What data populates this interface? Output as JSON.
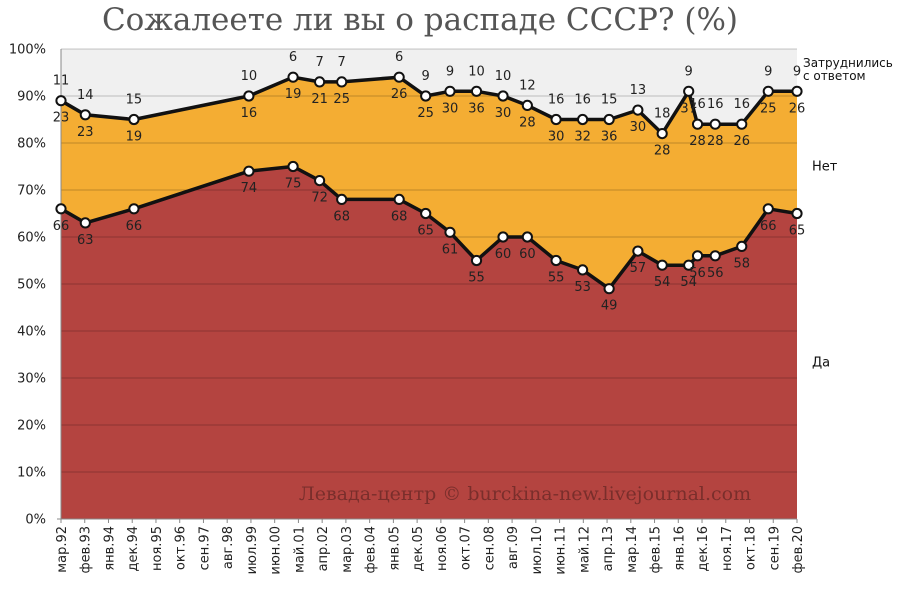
{
  "chart_data": {
    "type": "area",
    "title": "Сожалеете ли вы о распаде СССР? (%)",
    "watermark": "Левада-центр © burckina-new.livejournal.com",
    "y_axis": {
      "range": [
        0,
        100
      ],
      "ticks": [
        "0%",
        "10%",
        "20%",
        "30%",
        "40%",
        "50%",
        "60%",
        "70%",
        "80%",
        "90%",
        "100%"
      ]
    },
    "x_axis": {
      "tick_labels": [
        "мар.92",
        "фев.93",
        "янв.94",
        "дек.94",
        "ноя.95",
        "окт.96",
        "сен.97",
        "авг.98",
        "июл.99",
        "июн.00",
        "май.01",
        "апр.02",
        "мар.03",
        "фев.04",
        "янв.05",
        "дек.05",
        "ноя.06",
        "окт.07",
        "сен.08",
        "авг.09",
        "июл.10",
        "июн.11",
        "май.12",
        "апр.13",
        "мар.14",
        "фев.15",
        "янв.16",
        "дек.16",
        "ноя.17",
        "окт.18",
        "сен.19",
        "фев.20"
      ]
    },
    "grid": true,
    "legend_placement": "right",
    "colors": {
      "yes": "#b44440",
      "no": "#f4ad33",
      "hard_to_say": "#f0f0f0",
      "line": "#111111"
    },
    "series": [
      {
        "name": "Да",
        "key": "yes"
      },
      {
        "name": "Нет",
        "key": "no"
      },
      {
        "name": "Затруднились с ответом",
        "key": "hard_to_say"
      }
    ],
    "points": [
      {
        "date": "1992-03",
        "yes": 66,
        "no": 23,
        "hard_to_say": 11
      },
      {
        "date": "1993-02",
        "yes": 63,
        "no": 23,
        "hard_to_say": 14
      },
      {
        "date": "1994-12",
        "yes": 66,
        "no": 19,
        "hard_to_say": 15
      },
      {
        "date": "1999-04",
        "yes": 74,
        "no": 16,
        "hard_to_say": 10
      },
      {
        "date": "2000-12",
        "yes": 75,
        "no": 19,
        "hard_to_say": 6
      },
      {
        "date": "2001-12",
        "yes": 72,
        "no": 21,
        "hard_to_say": 7
      },
      {
        "date": "2002-10",
        "yes": 68,
        "no": 25,
        "hard_to_say": 7
      },
      {
        "date": "2004-12",
        "yes": 68,
        "no": 26,
        "hard_to_say": 6
      },
      {
        "date": "2005-12",
        "yes": 65,
        "no": 25,
        "hard_to_say": 9
      },
      {
        "date": "2006-11",
        "yes": 61,
        "no": 30,
        "hard_to_say": 9
      },
      {
        "date": "2007-11",
        "yes": 55,
        "no": 36,
        "hard_to_say": 10
      },
      {
        "date": "2008-11",
        "yes": 60,
        "no": 30,
        "hard_to_say": 10
      },
      {
        "date": "2009-10",
        "yes": 60,
        "no": 28,
        "hard_to_say": 12
      },
      {
        "date": "2010-11",
        "yes": 55,
        "no": 30,
        "hard_to_say": 16
      },
      {
        "date": "2011-11",
        "yes": 53,
        "no": 32,
        "hard_to_say": 16
      },
      {
        "date": "2012-11",
        "yes": 49,
        "no": 36,
        "hard_to_say": 15
      },
      {
        "date": "2013-12",
        "yes": 57,
        "no": 30,
        "hard_to_say": 13
      },
      {
        "date": "2014-11",
        "yes": 54,
        "no": 28,
        "hard_to_say": 18
      },
      {
        "date": "2015-11",
        "yes": 54,
        "no": 37,
        "hard_to_say": 9
      },
      {
        "date": "2016-03",
        "yes": 56,
        "no": 28,
        "hard_to_say": 16
      },
      {
        "date": "2016-11",
        "yes": 56,
        "no": 28,
        "hard_to_say": 16
      },
      {
        "date": "2017-11",
        "yes": 58,
        "no": 26,
        "hard_to_say": 16
      },
      {
        "date": "2018-11",
        "yes": 66,
        "no": 25,
        "hard_to_say": 9
      },
      {
        "date": "2019-12",
        "yes": 65,
        "no": 26,
        "hard_to_say": 9
      }
    ]
  }
}
